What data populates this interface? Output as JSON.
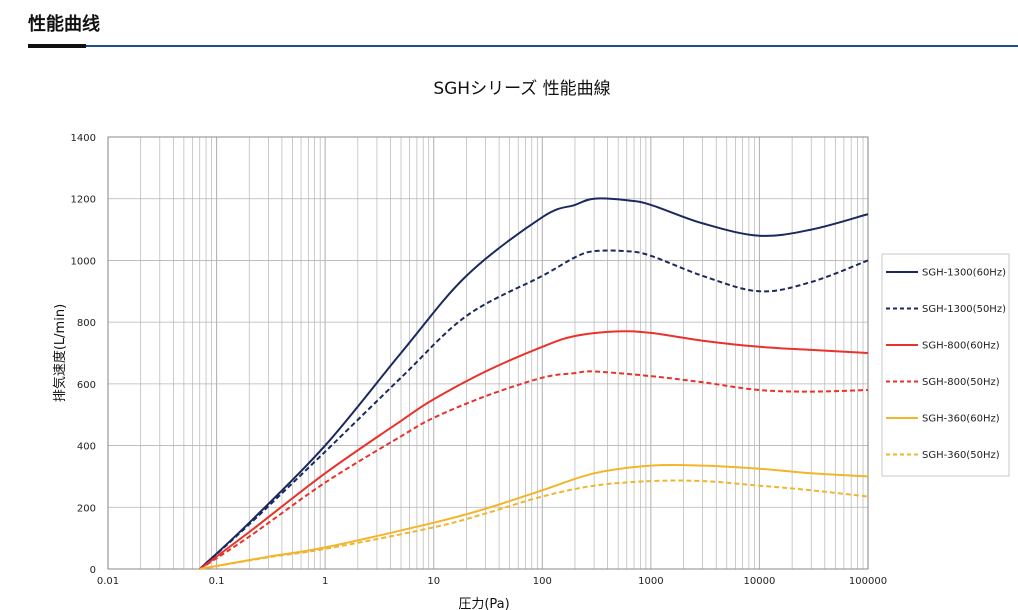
{
  "page": {
    "heading": "性能曲线"
  },
  "colors": {
    "heading_rule": "#1f4e8c",
    "navy": "#1b2a5e",
    "red": "#e8322a",
    "yellow": "#f2b52b",
    "grid": "#b5b5b5"
  },
  "chart_data": {
    "type": "line",
    "title": "SGHシリーズ 性能曲線",
    "xlabel": "圧力(Pa)",
    "ylabel": "排気速度(L/min)",
    "x_scale": "log",
    "xlim": [
      0.01,
      100000
    ],
    "ylim": [
      0,
      1400
    ],
    "x_ticks": [
      0.01,
      0.1,
      1,
      10,
      100,
      1000,
      10000,
      100000
    ],
    "x_tick_labels": [
      "0.01",
      "0.1",
      "1",
      "10",
      "100",
      "1000",
      "10000",
      "100000"
    ],
    "y_ticks": [
      0,
      200,
      400,
      600,
      800,
      1000,
      1200,
      1400
    ],
    "y_tick_labels": [
      "0",
      "200",
      "400",
      "600",
      "800",
      "1000",
      "1200",
      "1400"
    ],
    "grid": true,
    "legend_position": "right",
    "series": [
      {
        "name": "SGH-1300(60Hz)",
        "color": "#1b2a5e",
        "dash": "solid",
        "x": [
          0.07,
          0.2,
          1,
          5,
          20,
          100,
          200,
          300,
          600,
          1000,
          3000,
          10000,
          30000,
          100000
        ],
        "y": [
          0,
          150,
          400,
          700,
          950,
          1140,
          1180,
          1200,
          1195,
          1180,
          1120,
          1080,
          1100,
          1150
        ]
      },
      {
        "name": "SGH-1300(50Hz)",
        "color": "#1b2a5e",
        "dash": "dashed",
        "x": [
          0.07,
          0.2,
          1,
          5,
          20,
          100,
          200,
          300,
          600,
          1000,
          3000,
          10000,
          30000,
          100000
        ],
        "y": [
          0,
          145,
          380,
          620,
          820,
          950,
          1010,
          1030,
          1030,
          1015,
          950,
          900,
          930,
          1000
        ]
      },
      {
        "name": "SGH-800(60Hz)",
        "color": "#e8322a",
        "dash": "solid",
        "x": [
          0.07,
          0.2,
          1,
          5,
          10,
          30,
          100,
          200,
          500,
          1000,
          3000,
          10000,
          30000,
          100000
        ],
        "y": [
          0,
          120,
          310,
          480,
          550,
          640,
          720,
          755,
          770,
          765,
          740,
          720,
          710,
          700
        ]
      },
      {
        "name": "SGH-800(50Hz)",
        "color": "#e8322a",
        "dash": "dashed",
        "x": [
          0.07,
          0.2,
          1,
          5,
          10,
          30,
          100,
          200,
          300,
          1000,
          3000,
          10000,
          30000,
          100000
        ],
        "y": [
          0,
          105,
          280,
          430,
          490,
          560,
          620,
          635,
          640,
          625,
          605,
          580,
          575,
          580
        ]
      },
      {
        "name": "SGH-360(60Hz)",
        "color": "#f2b52b",
        "dash": "solid",
        "x": [
          0.07,
          0.3,
          1,
          10,
          30,
          100,
          300,
          1000,
          3000,
          10000,
          30000,
          100000
        ],
        "y": [
          0,
          40,
          70,
          150,
          195,
          255,
          310,
          335,
          335,
          325,
          310,
          300
        ]
      },
      {
        "name": "SGH-360(50Hz)",
        "color": "#f2b52b",
        "dash": "dashed",
        "x": [
          0.07,
          0.3,
          1,
          10,
          30,
          100,
          300,
          1000,
          3000,
          10000,
          30000,
          100000
        ],
        "y": [
          0,
          38,
          65,
          135,
          180,
          235,
          270,
          285,
          285,
          270,
          255,
          235
        ]
      }
    ]
  }
}
